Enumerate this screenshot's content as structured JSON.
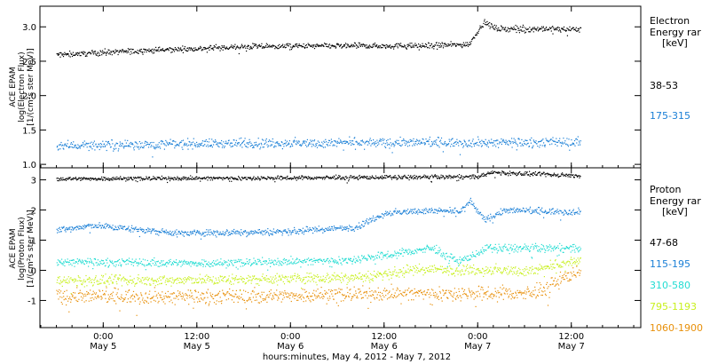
{
  "chart_data": [
    {
      "type": "scatter",
      "ylabel_lines": [
        "ACE EPAM",
        "log(Electron Flux)",
        "[1/(cm²s ster MeV)]"
      ],
      "ylim": [
        0.95,
        3.3
      ],
      "yticks": [
        1.0,
        1.5,
        2.0,
        2.5,
        3.0
      ],
      "ytick_labels": [
        "1.0",
        "1.5",
        "2.0",
        "2.5",
        "3.0"
      ],
      "legend_title": [
        "Electron",
        "Energy rar",
        "[keV]"
      ],
      "series": [
        {
          "name": "38-53",
          "color": "#000000",
          "profile": [
            [
              -0.25,
              2.6
            ],
            [
              0.2,
              2.66
            ],
            [
              0.8,
              2.72
            ],
            [
              1.3,
              2.73
            ],
            [
              1.7,
              2.73
            ],
            [
              1.95,
              2.75
            ],
            [
              2.03,
              3.07
            ],
            [
              2.1,
              2.98
            ],
            [
              2.55,
              2.97
            ]
          ]
        },
        {
          "name": "175-315",
          "color": "#1a7fd6",
          "profile": [
            [
              -0.25,
              1.28
            ],
            [
              0.6,
              1.31
            ],
            [
              1.5,
              1.32
            ],
            [
              2.55,
              1.33
            ]
          ]
        }
      ]
    },
    {
      "type": "scatter",
      "ylabel_lines": [
        "ACE EPAM",
        "log(Proton Flux)",
        "[1/(cm²s ster MeV)]"
      ],
      "ylim": [
        -1.9,
        3.4
      ],
      "yticks": [
        -1,
        0,
        1,
        2,
        3
      ],
      "ytick_labels": [
        "-1",
        "0",
        "1",
        "2",
        "3"
      ],
      "legend_title": [
        "Proton",
        "Energy rar",
        "[keV]"
      ],
      "series": [
        {
          "name": "47-68",
          "color": "#000000",
          "profile": [
            [
              -0.25,
              3.05
            ],
            [
              1.0,
              3.08
            ],
            [
              2.0,
              3.12
            ],
            [
              2.07,
              3.25
            ],
            [
              2.55,
              3.15
            ]
          ]
        },
        {
          "name": "115-195",
          "color": "#1a7fd6",
          "profile": [
            [
              -0.25,
              1.35
            ],
            [
              -0.05,
              1.5
            ],
            [
              0.4,
              1.25
            ],
            [
              1.0,
              1.3
            ],
            [
              1.35,
              1.45
            ],
            [
              1.5,
              1.9
            ],
            [
              1.7,
              2.0
            ],
            [
              1.9,
              1.95
            ],
            [
              1.96,
              2.3
            ],
            [
              2.03,
              1.7
            ],
            [
              2.15,
              2.0
            ],
            [
              2.55,
              1.95
            ]
          ]
        },
        {
          "name": "310-580",
          "color": "#22dcd2",
          "profile": [
            [
              -0.25,
              0.3
            ],
            [
              0.6,
              0.25
            ],
            [
              1.3,
              0.35
            ],
            [
              1.55,
              0.55
            ],
            [
              1.75,
              0.75
            ],
            [
              1.9,
              0.3
            ],
            [
              2.05,
              0.75
            ],
            [
              2.55,
              0.75
            ]
          ]
        },
        {
          "name": "795-1193",
          "color": "#c8f01e",
          "profile": [
            [
              -0.25,
              -0.35
            ],
            [
              0.6,
              -0.3
            ],
            [
              1.4,
              -0.2
            ],
            [
              1.7,
              0.05
            ],
            [
              2.3,
              0.0
            ],
            [
              2.55,
              0.35
            ]
          ]
        },
        {
          "name": "1060-1900",
          "color": "#e8900a",
          "profile": [
            [
              -0.25,
              -0.85
            ],
            [
              0.7,
              -0.85
            ],
            [
              1.6,
              -0.75
            ],
            [
              2.3,
              -0.75
            ],
            [
              2.55,
              0.05
            ]
          ]
        }
      ]
    }
  ],
  "x_axis": {
    "title": "hours:minutes, May  4, 2012 - May  7, 2012",
    "ticks": [
      {
        "day": 0.0,
        "time": "0:00",
        "date": "May 5"
      },
      {
        "day": 0.5,
        "time": "12:00",
        "date": "May 5"
      },
      {
        "day": 1.0,
        "time": "0:00",
        "date": "May 6"
      },
      {
        "day": 1.5,
        "time": "12:00",
        "date": "May 6"
      },
      {
        "day": 2.0,
        "time": "0:00",
        "date": "May 7"
      },
      {
        "day": 2.5,
        "time": "12:00",
        "date": "May 7"
      }
    ]
  }
}
